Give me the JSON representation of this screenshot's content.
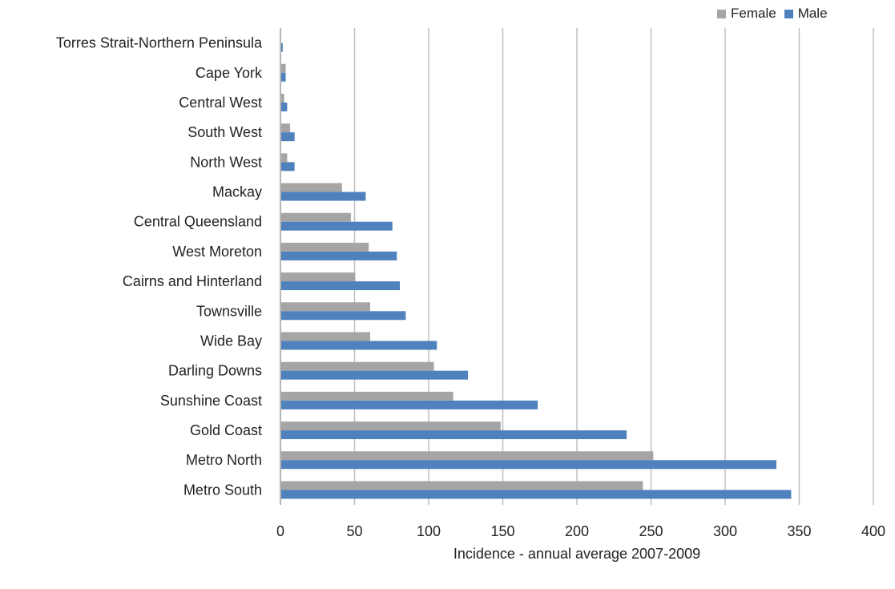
{
  "chart_data": {
    "type": "bar",
    "orientation": "horizontal",
    "categories": [
      "Torres Strait-Northern Peninsula",
      "Cape York",
      "Central West",
      "South West",
      "North West",
      "Mackay",
      "Central Queensland",
      "West Moreton",
      "Cairns and Hinterland",
      "Townsville",
      "Wide Bay",
      "Darling Downs",
      "Sunshine Coast",
      "Gold Coast",
      "Metro North",
      "Metro South"
    ],
    "series": [
      {
        "name": "Female",
        "color": "#a5a5a5",
        "values": [
          0,
          3,
          2,
          6,
          4,
          41,
          47,
          59,
          50,
          60,
          60,
          103,
          116,
          148,
          251,
          244
        ]
      },
      {
        "name": "Male",
        "color": "#4f81bd",
        "values": [
          1,
          3,
          4,
          9,
          9,
          57,
          75,
          78,
          80,
          84,
          105,
          126,
          173,
          233,
          334,
          344
        ]
      }
    ],
    "xlabel": "Incidence - annual average 2007-2009",
    "ylabel": "",
    "xlim": [
      0,
      400
    ],
    "xticks": [
      0,
      50,
      100,
      150,
      200,
      250,
      300,
      350,
      400
    ],
    "grid": "vertical",
    "legend_position": "top-right"
  }
}
